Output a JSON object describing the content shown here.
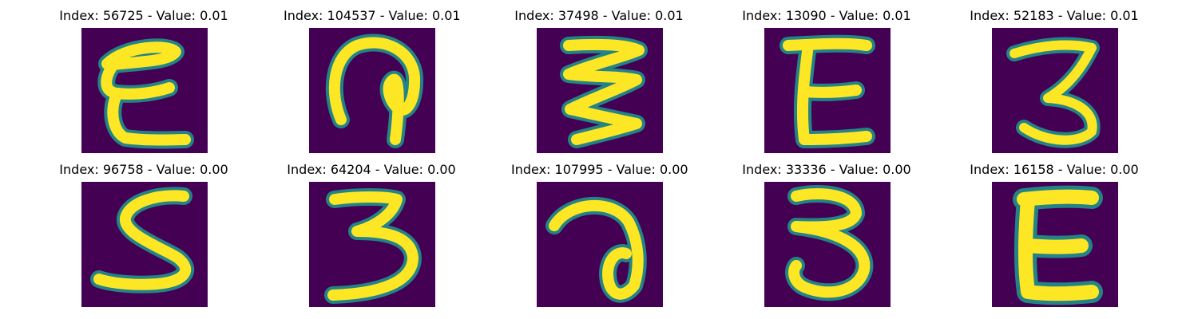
{
  "colors": {
    "background": "#440154",
    "stroke": "#fde725",
    "edge": "#21918c"
  },
  "panels": [
    {
      "title": "Index: 56725 - Value: 0.01",
      "icon": "handwritten-glyph-E"
    },
    {
      "title": "Index: 104537 - Value: 0.01",
      "icon": "handwritten-glyph-loop"
    },
    {
      "title": "Index: 37498 - Value: 0.01",
      "icon": "handwritten-glyph-zigzag"
    },
    {
      "title": "Index: 13090 - Value: 0.01",
      "icon": "handwritten-glyph-E"
    },
    {
      "title": "Index: 52183 - Value: 0.01",
      "icon": "handwritten-glyph-3"
    },
    {
      "title": "Index: 96758 - Value: 0.00",
      "icon": "handwritten-glyph-5"
    },
    {
      "title": "Index: 64204 - Value: 0.00",
      "icon": "handwritten-glyph-3"
    },
    {
      "title": "Index: 107995 - Value: 0.00",
      "icon": "handwritten-glyph-loop"
    },
    {
      "title": "Index: 33336 - Value: 0.00",
      "icon": "handwritten-glyph-3"
    },
    {
      "title": "Index: 16158 - Value: 0.00",
      "icon": "handwritten-glyph-E"
    }
  ]
}
